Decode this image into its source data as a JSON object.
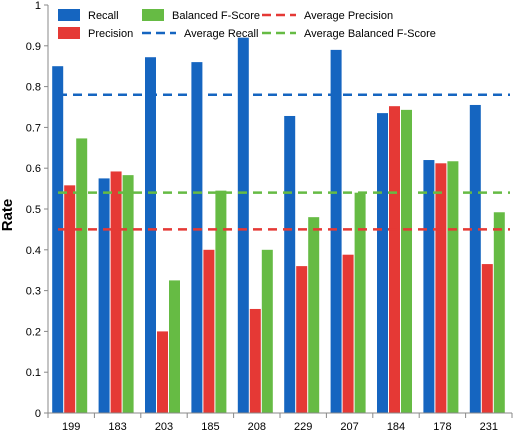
{
  "chart_data": {
    "type": "bar",
    "title": "",
    "xlabel": "",
    "ylabel": "Rate",
    "ylim": [
      0,
      1
    ],
    "y_ticks": [
      "0",
      "0.1",
      "0.2",
      "0.3",
      "0.4",
      "0.5",
      "0.6",
      "0.7",
      "0.8",
      "0.9",
      "1"
    ],
    "grid": false,
    "legend_position": "top",
    "categories": [
      "199",
      "183",
      "203",
      "185",
      "208",
      "229",
      "207",
      "184",
      "178",
      "231"
    ],
    "series": [
      {
        "name": "Recall",
        "color": "#1565C0",
        "values": [
          0.85,
          0.575,
          0.872,
          0.86,
          0.92,
          0.728,
          0.89,
          0.735,
          0.62,
          0.755
        ]
      },
      {
        "name": "Precision",
        "color": "#E53935",
        "values": [
          0.558,
          0.592,
          0.2,
          0.4,
          0.255,
          0.36,
          0.388,
          0.752,
          0.612,
          0.365
        ]
      },
      {
        "name": "Balanced F-Score",
        "color": "#66BB44",
        "values": [
          0.673,
          0.583,
          0.325,
          0.545,
          0.4,
          0.48,
          0.54,
          0.743,
          0.617,
          0.492
        ]
      }
    ],
    "reference_lines": [
      {
        "name": "Average Recall",
        "color": "#1565C0",
        "value": 0.78
      },
      {
        "name": "Average Precision",
        "color": "#E53935",
        "value": 0.45
      },
      {
        "name": "Average Balanced F-Score",
        "color": "#66BB44",
        "value": 0.54
      }
    ],
    "legend": [
      {
        "label": "Recall",
        "kind": "box",
        "color": "#1565C0"
      },
      {
        "label": "Balanced F-Score",
        "kind": "box",
        "color": "#66BB44"
      },
      {
        "label": "Average Precision",
        "kind": "dash",
        "color": "#E53935"
      },
      {
        "label": "Precision",
        "kind": "box",
        "color": "#E53935"
      },
      {
        "label": "Average Recall",
        "kind": "dash",
        "color": "#1565C0"
      },
      {
        "label": "Average Balanced F-Score",
        "kind": "dash",
        "color": "#66BB44"
      }
    ]
  }
}
